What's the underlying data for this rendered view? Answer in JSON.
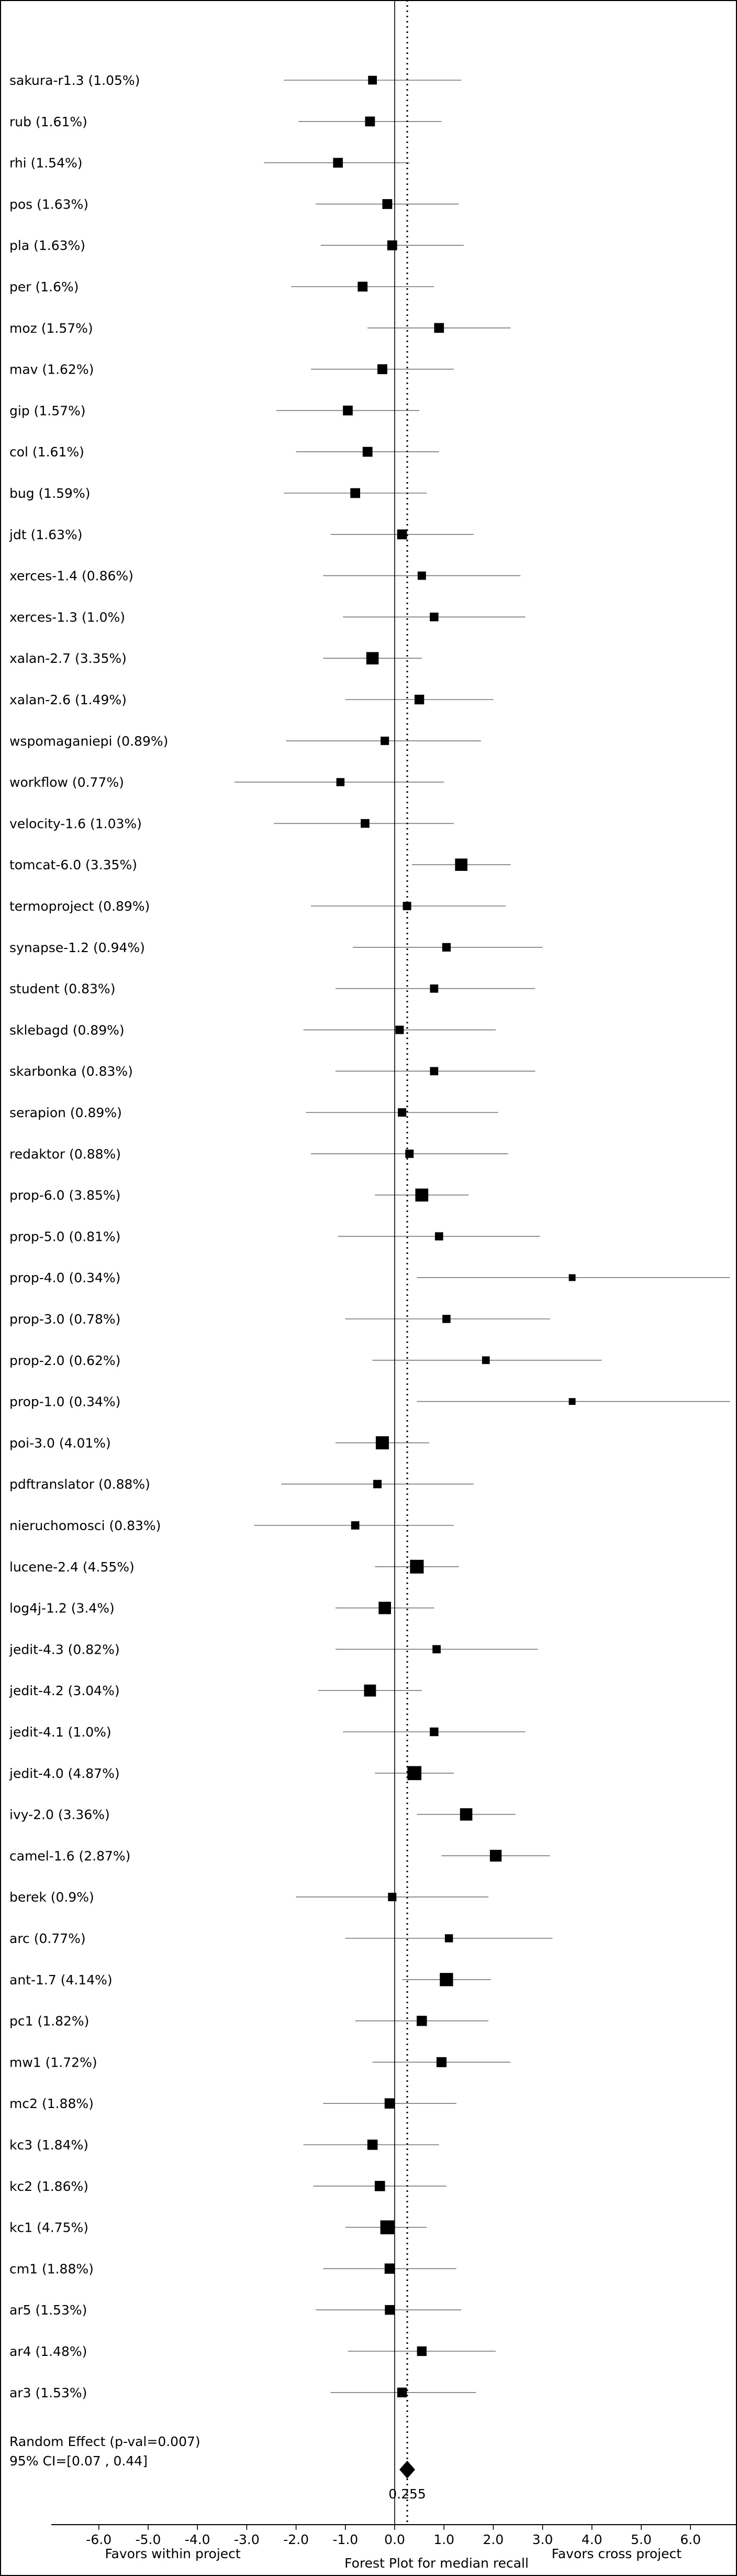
{
  "chart_data": {
    "type": "forest",
    "xlabel": "Forest Plot for median recall",
    "favors_left": "Favors within project",
    "favors_right": "Favors cross project",
    "x_ticks": [
      "-6.0",
      "-5.0",
      "-4.0",
      "-3.0",
      "-2.0",
      "-1.0",
      "0.0",
      "1.0",
      "2.0",
      "3.0",
      "4.0",
      "5.0",
      "6.0"
    ],
    "xlim": [
      -7.0,
      7.0
    ],
    "grid": false,
    "studies": [
      {
        "label": "sakura-r1.3 (1.05%)",
        "weight": 1.05,
        "estimate": -0.45,
        "ci": [
          -2.25,
          1.35
        ]
      },
      {
        "label": "rub (1.61%)",
        "weight": 1.61,
        "estimate": -0.5,
        "ci": [
          -1.95,
          0.95
        ]
      },
      {
        "label": "rhi (1.54%)",
        "weight": 1.54,
        "estimate": -1.15,
        "ci": [
          -2.65,
          0.3
        ]
      },
      {
        "label": "pos (1.63%)",
        "weight": 1.63,
        "estimate": -0.15,
        "ci": [
          -1.6,
          1.3
        ]
      },
      {
        "label": "pla (1.63%)",
        "weight": 1.63,
        "estimate": -0.05,
        "ci": [
          -1.5,
          1.4
        ]
      },
      {
        "label": "per (1.6%)",
        "weight": 1.6,
        "estimate": -0.65,
        "ci": [
          -2.1,
          0.8
        ]
      },
      {
        "label": "moz (1.57%)",
        "weight": 1.57,
        "estimate": 0.9,
        "ci": [
          -0.55,
          2.35
        ]
      },
      {
        "label": "mav (1.62%)",
        "weight": 1.62,
        "estimate": -0.25,
        "ci": [
          -1.7,
          1.2
        ]
      },
      {
        "label": "gip (1.57%)",
        "weight": 1.57,
        "estimate": -0.95,
        "ci": [
          -2.4,
          0.5
        ]
      },
      {
        "label": "col (1.61%)",
        "weight": 1.61,
        "estimate": -0.55,
        "ci": [
          -2.0,
          0.9
        ]
      },
      {
        "label": "bug (1.59%)",
        "weight": 1.59,
        "estimate": -0.8,
        "ci": [
          -2.25,
          0.65
        ]
      },
      {
        "label": "jdt (1.63%)",
        "weight": 1.63,
        "estimate": 0.15,
        "ci": [
          -1.3,
          1.6
        ]
      },
      {
        "label": "xerces-1.4 (0.86%)",
        "weight": 0.86,
        "estimate": 0.55,
        "ci": [
          -1.45,
          2.55
        ]
      },
      {
        "label": "xerces-1.3 (1.0%)",
        "weight": 1.0,
        "estimate": 0.8,
        "ci": [
          -1.05,
          2.65
        ]
      },
      {
        "label": "xalan-2.7 (3.35%)",
        "weight": 3.35,
        "estimate": -0.45,
        "ci": [
          -1.45,
          0.55
        ]
      },
      {
        "label": "xalan-2.6 (1.49%)",
        "weight": 1.49,
        "estimate": 0.5,
        "ci": [
          -1.0,
          2.0
        ]
      },
      {
        "label": "wspomaganiepi (0.89%)",
        "weight": 0.89,
        "estimate": -0.2,
        "ci": [
          -2.2,
          1.75
        ]
      },
      {
        "label": "workflow (0.77%)",
        "weight": 0.77,
        "estimate": -1.1,
        "ci": [
          -3.25,
          1.0
        ]
      },
      {
        "label": "velocity-1.6 (1.03%)",
        "weight": 1.03,
        "estimate": -0.6,
        "ci": [
          -2.45,
          1.2
        ]
      },
      {
        "label": "tomcat-6.0 (3.35%)",
        "weight": 3.35,
        "estimate": 1.35,
        "ci": [
          0.35,
          2.35
        ]
      },
      {
        "label": "termoproject (0.89%)",
        "weight": 0.89,
        "estimate": 0.25,
        "ci": [
          -1.7,
          2.25
        ]
      },
      {
        "label": "synapse-1.2 (0.94%)",
        "weight": 0.94,
        "estimate": 1.05,
        "ci": [
          -0.85,
          3.0
        ]
      },
      {
        "label": "student (0.83%)",
        "weight": 0.83,
        "estimate": 0.8,
        "ci": [
          -1.2,
          2.85
        ]
      },
      {
        "label": "sklebagd (0.89%)",
        "weight": 0.89,
        "estimate": 0.1,
        "ci": [
          -1.85,
          2.05
        ]
      },
      {
        "label": "skarbonka (0.83%)",
        "weight": 0.83,
        "estimate": 0.8,
        "ci": [
          -1.2,
          2.85
        ]
      },
      {
        "label": "serapion (0.89%)",
        "weight": 0.89,
        "estimate": 0.15,
        "ci": [
          -1.8,
          2.1
        ]
      },
      {
        "label": "redaktor (0.88%)",
        "weight": 0.88,
        "estimate": 0.3,
        "ci": [
          -1.7,
          2.3
        ]
      },
      {
        "label": "prop-6.0 (3.85%)",
        "weight": 3.85,
        "estimate": 0.55,
        "ci": [
          -0.4,
          1.5
        ]
      },
      {
        "label": "prop-5.0 (0.81%)",
        "weight": 0.81,
        "estimate": 0.9,
        "ci": [
          -1.15,
          2.95
        ]
      },
      {
        "label": "prop-4.0 (0.34%)",
        "weight": 0.34,
        "estimate": 3.6,
        "ci": [
          0.45,
          6.8
        ]
      },
      {
        "label": "prop-3.0 (0.78%)",
        "weight": 0.78,
        "estimate": 1.05,
        "ci": [
          -1.0,
          3.15
        ]
      },
      {
        "label": "prop-2.0 (0.62%)",
        "weight": 0.62,
        "estimate": 1.85,
        "ci": [
          -0.45,
          4.2
        ]
      },
      {
        "label": "prop-1.0 (0.34%)",
        "weight": 0.34,
        "estimate": 3.6,
        "ci": [
          0.45,
          6.8
        ]
      },
      {
        "label": "poi-3.0 (4.01%)",
        "weight": 4.01,
        "estimate": -0.25,
        "ci": [
          -1.2,
          0.7
        ]
      },
      {
        "label": "pdftranslator (0.88%)",
        "weight": 0.88,
        "estimate": -0.35,
        "ci": [
          -2.3,
          1.6
        ]
      },
      {
        "label": "nieruchomosci (0.83%)",
        "weight": 0.83,
        "estimate": -0.8,
        "ci": [
          -2.85,
          1.2
        ]
      },
      {
        "label": "lucene-2.4 (4.55%)",
        "weight": 4.55,
        "estimate": 0.45,
        "ci": [
          -0.4,
          1.3
        ]
      },
      {
        "label": "log4j-1.2 (3.4%)",
        "weight": 3.4,
        "estimate": -0.2,
        "ci": [
          -1.2,
          0.8
        ]
      },
      {
        "label": "jedit-4.3 (0.82%)",
        "weight": 0.82,
        "estimate": 0.85,
        "ci": [
          -1.2,
          2.9
        ]
      },
      {
        "label": "jedit-4.2 (3.04%)",
        "weight": 3.04,
        "estimate": -0.5,
        "ci": [
          -1.55,
          0.55
        ]
      },
      {
        "label": "jedit-4.1 (1.0%)",
        "weight": 1.0,
        "estimate": 0.8,
        "ci": [
          -1.05,
          2.65
        ]
      },
      {
        "label": "jedit-4.0 (4.87%)",
        "weight": 4.87,
        "estimate": 0.4,
        "ci": [
          -0.4,
          1.2
        ]
      },
      {
        "label": "ivy-2.0 (3.36%)",
        "weight": 3.36,
        "estimate": 1.45,
        "ci": [
          0.45,
          2.45
        ]
      },
      {
        "label": "camel-1.6 (2.87%)",
        "weight": 2.87,
        "estimate": 2.05,
        "ci": [
          0.95,
          3.15
        ]
      },
      {
        "label": "berek (0.9%)",
        "weight": 0.9,
        "estimate": -0.05,
        "ci": [
          -2.0,
          1.9
        ]
      },
      {
        "label": "arc (0.77%)",
        "weight": 0.77,
        "estimate": 1.1,
        "ci": [
          -1.0,
          3.2
        ]
      },
      {
        "label": "ant-1.7 (4.14%)",
        "weight": 4.14,
        "estimate": 1.05,
        "ci": [
          0.15,
          1.95
        ]
      },
      {
        "label": "pc1 (1.82%)",
        "weight": 1.82,
        "estimate": 0.55,
        "ci": [
          -0.8,
          1.9
        ]
      },
      {
        "label": "mw1 (1.72%)",
        "weight": 1.72,
        "estimate": 0.95,
        "ci": [
          -0.45,
          2.35
        ]
      },
      {
        "label": "mc2 (1.88%)",
        "weight": 1.88,
        "estimate": -0.1,
        "ci": [
          -1.45,
          1.25
        ]
      },
      {
        "label": "kc3 (1.84%)",
        "weight": 1.84,
        "estimate": -0.45,
        "ci": [
          -1.85,
          0.9
        ]
      },
      {
        "label": "kc2 (1.86%)",
        "weight": 1.86,
        "estimate": -0.3,
        "ci": [
          -1.65,
          1.05
        ]
      },
      {
        "label": "kc1 (4.75%)",
        "weight": 4.75,
        "estimate": -0.15,
        "ci": [
          -1.0,
          0.65
        ]
      },
      {
        "label": "cm1 (1.88%)",
        "weight": 1.88,
        "estimate": -0.1,
        "ci": [
          -1.45,
          1.25
        ]
      },
      {
        "label": "ar5 (1.53%)",
        "weight": 1.53,
        "estimate": -0.1,
        "ci": [
          -1.6,
          1.35
        ]
      },
      {
        "label": "ar4 (1.48%)",
        "weight": 1.48,
        "estimate": 0.55,
        "ci": [
          -0.95,
          2.05
        ]
      },
      {
        "label": "ar3 (1.53%)",
        "weight": 1.53,
        "estimate": 0.15,
        "ci": [
          -1.3,
          1.65
        ]
      }
    ],
    "summary": {
      "label": "Random Effect (p-val=0.007)",
      "ci_text": "95% CI=[0.07 , 0.44]",
      "estimate": 0.255,
      "estimate_text": "0.255",
      "ci": [
        0.07,
        0.44
      ]
    }
  }
}
